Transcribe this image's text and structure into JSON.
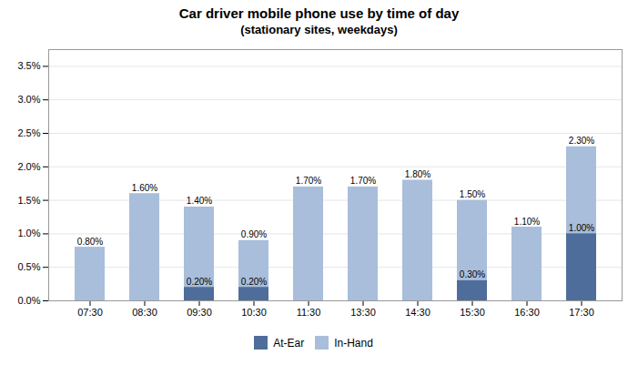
{
  "chart_data": {
    "type": "bar",
    "title": "Car driver mobile phone use by time of day",
    "subtitle": "(stationary sites, weekdays)",
    "categories": [
      "07:30",
      "08:30",
      "09:30",
      "10:30",
      "11:30",
      "13:30",
      "14:30",
      "15:30",
      "16:30",
      "17:30"
    ],
    "series": [
      {
        "name": "At-Ear",
        "color": "#4F6D9B",
        "values": [
          0.0,
          0.0,
          0.2,
          0.2,
          0.0,
          0.0,
          0.0,
          0.3,
          0.0,
          1.0
        ],
        "value_labels": [
          null,
          null,
          "0.20%",
          "0.20%",
          null,
          null,
          null,
          "0.30%",
          null,
          "1.00%"
        ]
      },
      {
        "name": "In-Hand",
        "color": "#A8BEDB",
        "values": [
          0.8,
          1.6,
          1.4,
          0.9,
          1.7,
          1.7,
          1.8,
          1.5,
          1.1,
          2.3
        ],
        "value_labels": [
          "0.80%",
          "1.60%",
          "1.40%",
          "0.90%",
          "1.70%",
          "1.70%",
          "1.80%",
          "1.50%",
          "1.10%",
          "2.30%"
        ]
      }
    ],
    "stacked": false,
    "data_labels": true,
    "ylim": [
      0,
      3.75
    ],
    "yticks": [
      {
        "value": 0.0,
        "label": "0.0%"
      },
      {
        "value": 0.5,
        "label": "0.5%"
      },
      {
        "value": 1.0,
        "label": "1.0%"
      },
      {
        "value": 1.5,
        "label": "1.5%"
      },
      {
        "value": 2.0,
        "label": "2.0%"
      },
      {
        "value": 2.5,
        "label": "2.5%"
      },
      {
        "value": 3.0,
        "label": "3.0%"
      },
      {
        "value": 3.5,
        "label": "3.5%"
      }
    ],
    "grid": true,
    "legend": "bottom"
  }
}
